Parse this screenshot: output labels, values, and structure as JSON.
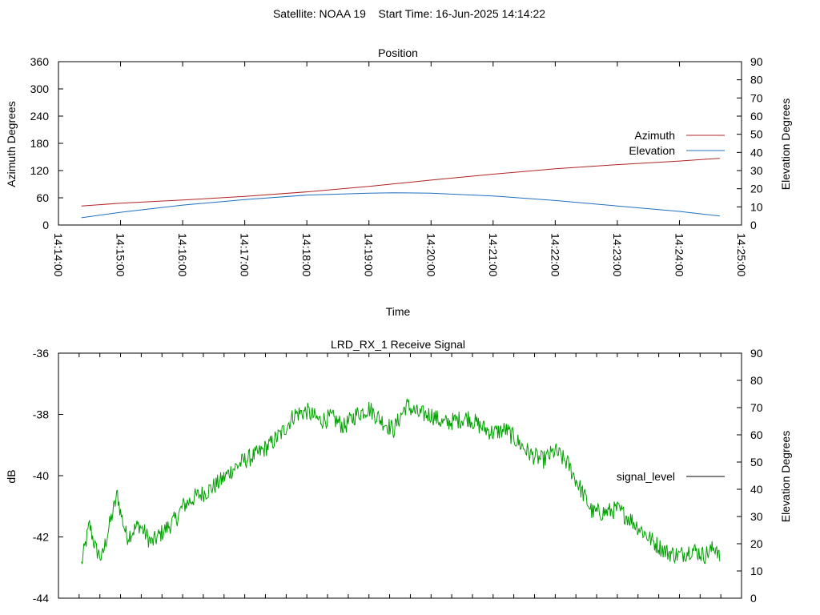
{
  "page_title": "Satellite: NOAA 19    Start Time: 16-Jun-2025 14:14:22",
  "chart_data": [
    {
      "type": "line",
      "title": "Position",
      "xlabel": "Time",
      "ylabel": "Azimuth Degrees",
      "y2label": "Elevation Degrees",
      "x_ticks": [
        "14:14:00",
        "14:15:00",
        "14:16:00",
        "14:17:00",
        "14:18:00",
        "14:19:00",
        "14:20:00",
        "14:21:00",
        "14:22:00",
        "14:23:00",
        "14:24:00",
        "14:25:00"
      ],
      "x_tick_minutes": [
        0,
        1,
        2,
        3,
        4,
        5,
        6,
        7,
        8,
        9,
        10,
        11
      ],
      "xlim_minutes": [
        0,
        11
      ],
      "ylim": [
        0,
        360
      ],
      "y_ticks": [
        0,
        60,
        120,
        180,
        240,
        300,
        360
      ],
      "y2lim": [
        0,
        90
      ],
      "y2_ticks": [
        0,
        10,
        20,
        30,
        40,
        50,
        60,
        70,
        80,
        90
      ],
      "legend_position": "right",
      "series": [
        {
          "name": "Azimuth",
          "axis": "y",
          "color": "#b22222",
          "x_minutes": [
            0.37,
            1.0,
            2.0,
            3.0,
            4.0,
            5.0,
            6.0,
            7.0,
            8.0,
            9.0,
            10.0,
            10.65
          ],
          "values": [
            42,
            48,
            55,
            63,
            73,
            85,
            99,
            112,
            124,
            133,
            141,
            147
          ]
        },
        {
          "name": "Elevation",
          "axis": "y2",
          "color": "#1f6fbf",
          "x_minutes": [
            0.37,
            1.0,
            2.0,
            3.0,
            4.0,
            5.0,
            5.4,
            6.0,
            7.0,
            8.0,
            9.0,
            10.0,
            10.65
          ],
          "values": [
            4,
            7,
            11,
            14,
            16.5,
            17.5,
            17.8,
            17.5,
            16,
            13.5,
            10.5,
            7.5,
            5
          ]
        }
      ]
    },
    {
      "type": "line",
      "title": "LRD_RX_1 Receive Signal",
      "ylabel": "dB",
      "y2label": "Elevation Degrees",
      "xlim_minutes": [
        0,
        11
      ],
      "x_minor_ticks_minutes": [
        0.333,
        0.667,
        1.0,
        1.333,
        1.667,
        2.0,
        2.333,
        2.667,
        3.0,
        3.333,
        3.667,
        4.0,
        4.333,
        4.667,
        5.0,
        5.333,
        5.667,
        6.0,
        6.333,
        6.667,
        7.0,
        7.333,
        7.667,
        8.0,
        8.333,
        8.667,
        9.0,
        9.333,
        9.667,
        10.0,
        10.333,
        10.667
      ],
      "ylim": [
        -44,
        -36
      ],
      "y_ticks": [
        -44,
        -42,
        -40,
        -38,
        -36
      ],
      "y2lim": [
        0,
        90
      ],
      "y2_ticks": [
        0,
        10,
        20,
        30,
        40,
        50,
        60,
        70,
        80,
        90
      ],
      "legend_position": "right",
      "series": [
        {
          "name": "signal_level",
          "color": "#00a000",
          "legend_color": "#000000",
          "x_minutes": [
            0.37,
            0.5,
            0.6,
            0.7,
            0.8,
            0.95,
            1.0,
            1.1,
            1.3,
            1.5,
            1.7,
            1.9,
            2.0,
            2.2,
            2.4,
            2.6,
            2.8,
            3.0,
            3.2,
            3.4,
            3.6,
            3.8,
            4.0,
            4.2,
            4.4,
            4.6,
            4.8,
            5.0,
            5.2,
            5.4,
            5.5,
            5.6,
            5.8,
            6.0,
            6.2,
            6.4,
            6.6,
            6.8,
            7.0,
            7.2,
            7.4,
            7.6,
            7.8,
            8.0,
            8.2,
            8.4,
            8.6,
            8.8,
            9.0,
            9.2,
            9.4,
            9.6,
            9.8,
            10.0,
            10.2,
            10.4,
            10.6,
            10.65
          ],
          "values": [
            -42.9,
            -41.6,
            -42.4,
            -42.7,
            -41.8,
            -40.6,
            -41.2,
            -42.0,
            -41.6,
            -42.2,
            -41.8,
            -41.4,
            -41.0,
            -40.7,
            -40.5,
            -40.2,
            -39.8,
            -39.5,
            -39.3,
            -39.0,
            -38.6,
            -38.0,
            -37.9,
            -38.2,
            -38.1,
            -38.4,
            -38.0,
            -37.8,
            -38.2,
            -38.5,
            -38.1,
            -37.7,
            -38.0,
            -38.0,
            -38.3,
            -38.2,
            -38.1,
            -38.4,
            -38.6,
            -38.5,
            -38.9,
            -39.3,
            -39.5,
            -39.2,
            -39.6,
            -40.4,
            -41.2,
            -41.2,
            -41.1,
            -41.4,
            -41.8,
            -42.2,
            -42.5,
            -42.6,
            -42.4,
            -42.6,
            -42.3,
            -42.8
          ]
        }
      ]
    }
  ]
}
